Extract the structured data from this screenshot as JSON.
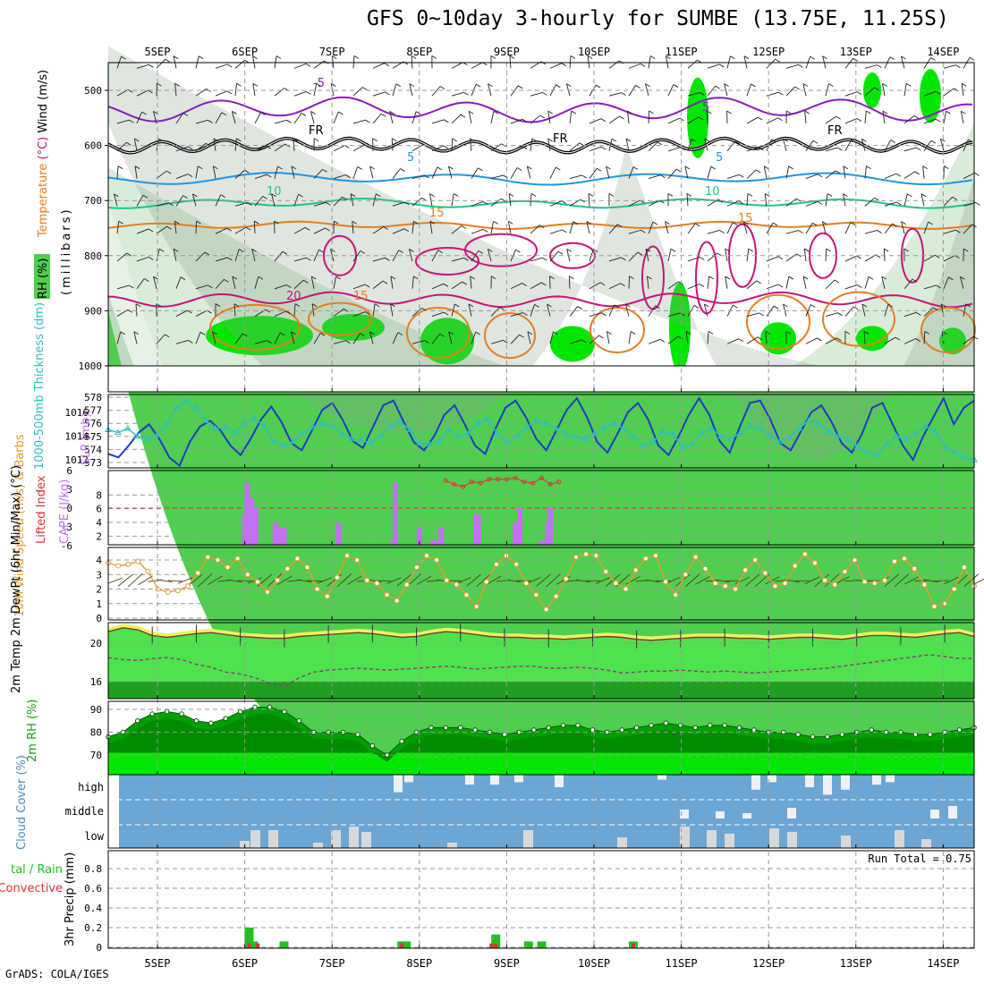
{
  "title": "GFS 0~10day 3-hourly for SUMBE (13.75E, 11.25S)",
  "credit": "GrADS: COLA/IGES",
  "date_labels": [
    "5SEP",
    "6SEP",
    "7SEP",
    "8SEP",
    "9SEP",
    "10SEP",
    "11SEP",
    "12SEP",
    "13SEP",
    "14SEP"
  ],
  "colors": {
    "grid": "#999999",
    "rh_light": "#e6f2e6",
    "rh_mid": "#bfd9bf",
    "rh_dark": "#4fce4f",
    "rh_bright": "#00e600",
    "temp_purple": "#8a1bc4",
    "temp_cyan": "#1f96e6",
    "temp_teal": "#1ec48a",
    "temp_orange": "#e67d1e",
    "temp_magenta": "#c8137a",
    "slp": "#1e3cc8",
    "thickness": "#2dbfbf",
    "cape": "#c070f0",
    "li": "#e03030",
    "wind10m": "#e69b2d",
    "temp2m": "#1a9a1a",
    "rh2m": "#00a000",
    "cloud": "#6ca6d4",
    "cloud_white": "#f0f0f4",
    "precip_total": "#20c020",
    "precip_conv": "#e03030"
  },
  "chart_data": [
    {
      "type": "heatmap",
      "panel": "upper-air",
      "ylabel_parts": [
        "Temperature",
        "(°C)",
        "Wind",
        "(m/s)"
      ],
      "ylabel2": "(millibars)",
      "rh_label": "RH (%)",
      "y_ticks": [
        "500",
        "600",
        "700",
        "800",
        "900",
        "1000"
      ],
      "ylim": [
        1000,
        450
      ],
      "isotherms": [
        {
          "value": -5,
          "label": "-5",
          "level_mb": 540
        },
        {
          "value": 0,
          "label": "FR",
          "level_mb": 600
        },
        {
          "value": 5,
          "label": "5",
          "level_mb": 660
        },
        {
          "value": 10,
          "label": "10",
          "level_mb": 700
        },
        {
          "value": 15,
          "label": "15",
          "level_mb": 745
        },
        {
          "value": 20,
          "label": "20",
          "level_mb": 880
        }
      ],
      "inline_labels": [
        "-5",
        "5",
        "FR",
        "FR",
        "FR",
        "5",
        "5",
        "10",
        "10",
        "15",
        "15",
        "20",
        "15"
      ]
    },
    {
      "type": "line",
      "panel": "slp-thickness",
      "ylabel_left": "1000-500mb Thickness (dm)",
      "ylabel_right": "SLP (mb)",
      "left_ticks": [
        "573",
        "574",
        "575",
        "576",
        "577",
        "578"
      ],
      "right_ticks": [
        "1012",
        "1014",
        "1016"
      ],
      "series": [
        {
          "name": "SLP (mb)",
          "values": [
            1012.5,
            1012.2,
            1013.2,
            1014.3,
            1015.0,
            1013.8,
            1012.2,
            1011.5,
            1013.5,
            1014.8,
            1015.3,
            1014.5,
            1013.2,
            1012.4,
            1013.8,
            1015.4,
            1016.5,
            1015.2,
            1013.4,
            1012.8,
            1014.5,
            1016.2,
            1016.8,
            1015.4,
            1013.6,
            1013.0,
            1014.8,
            1016.6,
            1017.0,
            1015.2,
            1013.5,
            1012.8,
            1014.0,
            1015.8,
            1016.6,
            1015.0,
            1013.2,
            1012.5,
            1014.6,
            1016.4,
            1017.0,
            1015.6,
            1013.8,
            1012.8,
            1014.5,
            1016.2,
            1017.2,
            1015.6,
            1013.5,
            1012.6,
            1014.2,
            1016.0,
            1016.8,
            1015.4,
            1013.2,
            1012.4,
            1014.0,
            1015.8,
            1017.2,
            1015.8,
            1013.6,
            1012.6,
            1014.8,
            1016.8,
            1017.0,
            1015.4,
            1013.4,
            1012.8,
            1014.4,
            1016.0,
            1016.6,
            1015.2,
            1013.4,
            1012.6,
            1014.2,
            1016.4,
            1016.8,
            1015.0,
            1013.2,
            1012.0,
            1014.0,
            1015.6,
            1017.2,
            1015.0,
            1016.4,
            1017.0
          ]
        },
        {
          "name": "Thickness (dm)",
          "values": [
            575.5,
            575.3,
            575.6,
            575.0,
            574.8,
            575.1,
            575.9,
            577.2,
            577.7,
            577.2,
            576.2,
            575.6,
            575.7,
            575.3,
            576.0,
            576.4,
            575.8,
            574.6,
            574.3,
            574.6,
            575.3,
            575.7,
            576.0,
            575.8,
            575.2,
            574.8,
            574.7,
            574.5,
            575.0,
            575.8,
            576.1,
            575.5,
            574.5,
            574.4,
            574.6,
            575.5,
            575.0,
            575.2,
            576.0,
            576.3,
            575.2,
            574.5,
            575.0,
            575.7,
            576.2,
            576.0,
            575.6,
            575.2,
            575.0,
            574.8,
            575.2,
            575.7,
            576.0,
            575.6,
            575.0,
            574.3,
            574.6,
            575.4,
            575.2,
            574.2,
            574.4,
            575.3,
            575.6,
            575.0,
            574.8,
            575.3,
            575.8,
            575.6,
            575.1,
            574.6,
            574.9,
            575.6,
            576.2,
            576.0,
            575.4,
            575.0,
            574.8,
            574.2,
            573.8,
            573.6,
            574.4,
            575.0,
            574.8,
            575.2,
            575.8,
            575.4,
            574.2,
            573.8,
            573.4,
            573.2
          ]
        }
      ]
    },
    {
      "type": "bar",
      "panel": "cape-li",
      "ylabel_left": "Lifted Index",
      "ylabel_right": "CAPE (J/kg)",
      "left_ticks": [
        "6",
        "3",
        "0",
        "-3",
        "-6"
      ],
      "right_ticks": [
        "2",
        "4",
        "6",
        "8"
      ],
      "series": [
        {
          "name": "CAPE (J/kg)",
          "points": [
            [
              9.0,
              5.2
            ],
            [
              9.1,
              9.8
            ],
            [
              9.3,
              7.5
            ],
            [
              9.5,
              6.2
            ],
            [
              10.4,
              4.0
            ],
            [
              10.6,
              3.2
            ],
            [
              10.8,
              3.2
            ],
            [
              13.3,
              4.0
            ],
            [
              15.8,
              1.4
            ],
            [
              15.9,
              9.8
            ],
            [
              17.0,
              3.2
            ],
            [
              17.6,
              1.4
            ],
            [
              17.8,
              1.4
            ],
            [
              18.0,
              3.2
            ],
            [
              19.6,
              5.2
            ],
            [
              19.7,
              5.2
            ],
            [
              21.4,
              4.0
            ],
            [
              21.6,
              6.2
            ],
            [
              22.6,
              1.4
            ],
            [
              22.8,
              1.4
            ],
            [
              22.9,
              4.0
            ],
            [
              23.0,
              6.2
            ]
          ]
        },
        {
          "name": "Lifted Index",
          "points": [
            [
              18.2,
              4.4
            ],
            [
              18.6,
              3.8
            ],
            [
              19.0,
              3.4
            ],
            [
              19.4,
              4.2
            ],
            [
              19.8,
              4.0
            ],
            [
              20.2,
              4.6
            ],
            [
              20.6,
              4.6
            ],
            [
              21.0,
              4.6
            ],
            [
              21.4,
              4.8
            ],
            [
              21.8,
              4.2
            ],
            [
              22.2,
              4.0
            ],
            [
              22.6,
              4.8
            ],
            [
              23.0,
              3.8
            ],
            [
              23.4,
              4.2
            ]
          ]
        }
      ]
    },
    {
      "type": "line",
      "panel": "wind10m",
      "ylabel": "10m Wind Speed (m/s) & Barbs",
      "y_ticks": [
        "0",
        "1",
        "2",
        "3",
        "4"
      ],
      "series": [
        {
          "name": "10m Wind Speed",
          "values": [
            3.8,
            3.6,
            3.7,
            3.9,
            3.2,
            2.0,
            1.8,
            1.9,
            2.2,
            3.1,
            4.2,
            4.0,
            3.5,
            4.1,
            3.0,
            2.5,
            1.8,
            2.6,
            3.4,
            4.1,
            3.5,
            2.0,
            1.5,
            2.8,
            4.3,
            4.0,
            2.6,
            2.4,
            1.6,
            1.2,
            2.3,
            3.5,
            4.3,
            4.0,
            2.6,
            2.3,
            1.6,
            0.8,
            2.5,
            3.7,
            4.3,
            3.7,
            2.4,
            1.6,
            0.6,
            1.5,
            2.7,
            4.2,
            4.4,
            4.3,
            3.2,
            2.4,
            2.0,
            3.3,
            4.1,
            4.3,
            2.5,
            1.6,
            3.0,
            4.2,
            3.4,
            2.4,
            2.2,
            2.0,
            3.3,
            4.0,
            3.1,
            2.2,
            2.4,
            3.6,
            4.4,
            3.8,
            2.6,
            2.3,
            3.2,
            4.0,
            2.5,
            2.4,
            2.6,
            3.9,
            4.1,
            3.4,
            2.3,
            0.8,
            1.0,
            2.0,
            3.5,
            2.2
          ]
        }
      ]
    },
    {
      "type": "area",
      "panel": "temp2m",
      "ylabel": "2m Temp 2m DewPt (6hr Min/Max) (°C)",
      "y_ticks": [
        "16",
        "20"
      ],
      "series": [
        {
          "name": "2m Temp",
          "values": [
            21.2,
            21.6,
            21.4,
            20.8,
            20.6,
            20.8,
            21.0,
            21.1,
            20.9,
            20.7,
            20.6,
            20.5,
            20.5,
            20.7,
            20.8,
            20.9,
            21.0,
            21.1,
            21.0,
            20.8,
            20.6,
            20.7,
            21.0,
            21.2,
            21.1,
            20.9,
            20.7,
            20.6,
            20.6,
            20.5,
            20.5,
            20.4,
            20.5,
            20.6,
            20.7,
            20.6,
            20.4,
            20.3,
            20.4,
            20.5,
            20.6,
            20.6,
            20.6,
            20.5,
            20.5,
            20.4,
            20.5,
            20.6,
            20.6,
            20.5,
            20.4,
            20.6,
            20.8,
            20.8,
            20.7,
            20.6,
            20.8,
            21.0,
            21.1,
            20.7
          ]
        },
        {
          "name": "2m DewPt",
          "values": [
            18.5,
            18.3,
            18.2,
            18.4,
            18.5,
            18.3,
            17.8,
            17.5,
            17.0,
            16.8,
            16.4,
            15.8,
            15.5,
            16.4,
            17.0,
            17.2,
            17.3,
            17.4,
            17.3,
            17.2,
            17.3,
            17.4,
            17.5,
            17.6,
            17.5,
            17.3,
            17.4,
            17.5,
            17.6,
            17.6,
            17.4,
            17.4,
            17.5,
            17.4,
            17.2,
            16.9,
            17.0,
            17.1,
            17.1,
            17.2,
            17.1,
            17.0,
            17.1,
            17.0,
            16.9,
            17.0,
            17.1,
            17.2,
            17.3,
            17.4,
            17.6,
            17.8,
            18.0,
            18.2,
            18.4,
            18.6,
            18.8,
            18.6,
            18.4,
            18.4
          ]
        }
      ]
    },
    {
      "type": "area",
      "panel": "rh2m",
      "ylabel": "2m RH (%)",
      "y_ticks": [
        "70",
        "80",
        "90"
      ],
      "series": [
        {
          "name": "2m RH",
          "values": [
            78,
            80,
            85,
            88,
            89,
            88,
            85,
            84,
            86,
            89,
            91,
            91,
            89,
            85,
            80,
            80,
            80,
            79,
            74,
            70,
            76,
            80,
            82,
            82,
            82,
            81,
            80,
            79,
            80,
            81,
            82,
            83,
            83,
            81,
            80,
            81,
            82,
            83,
            84,
            83,
            82,
            83,
            83,
            82,
            81,
            80,
            80,
            79,
            78,
            78,
            79,
            80,
            81,
            80,
            80,
            79,
            79,
            80,
            81,
            82
          ]
        }
      ]
    },
    {
      "type": "bar",
      "panel": "cloud",
      "ylabel": "Cloud Cover (%)",
      "y_ticks": [
        "high",
        "middle",
        "low"
      ]
    },
    {
      "type": "bar",
      "panel": "precip",
      "ylabel_left": "Total / Rain Convective",
      "ylabel_right": "3hr Precip (mm)",
      "y_ticks": [
        "0",
        "0.2",
        "0.4",
        "0.6",
        "0.8"
      ],
      "run_total": "Run Total = 0.75",
      "series": [
        {
          "name": "Total",
          "points": [
            [
              9.2,
              0.2
            ],
            [
              9.4,
              0.06
            ],
            [
              10.8,
              0.06
            ],
            [
              16.2,
              0.06
            ],
            [
              16.4,
              0.06
            ],
            [
              20.5,
              0.13
            ],
            [
              22.0,
              0.06
            ],
            [
              22.6,
              0.06
            ],
            [
              26.8,
              0.06
            ]
          ]
        },
        {
          "name": "Convective",
          "points": [
            [
              9.2,
              0.04
            ],
            [
              9.6,
              0.04
            ],
            [
              16.2,
              0.04
            ],
            [
              20.3,
              0.04
            ],
            [
              20.5,
              0.04
            ],
            [
              26.8,
              0.04
            ]
          ]
        }
      ]
    }
  ]
}
